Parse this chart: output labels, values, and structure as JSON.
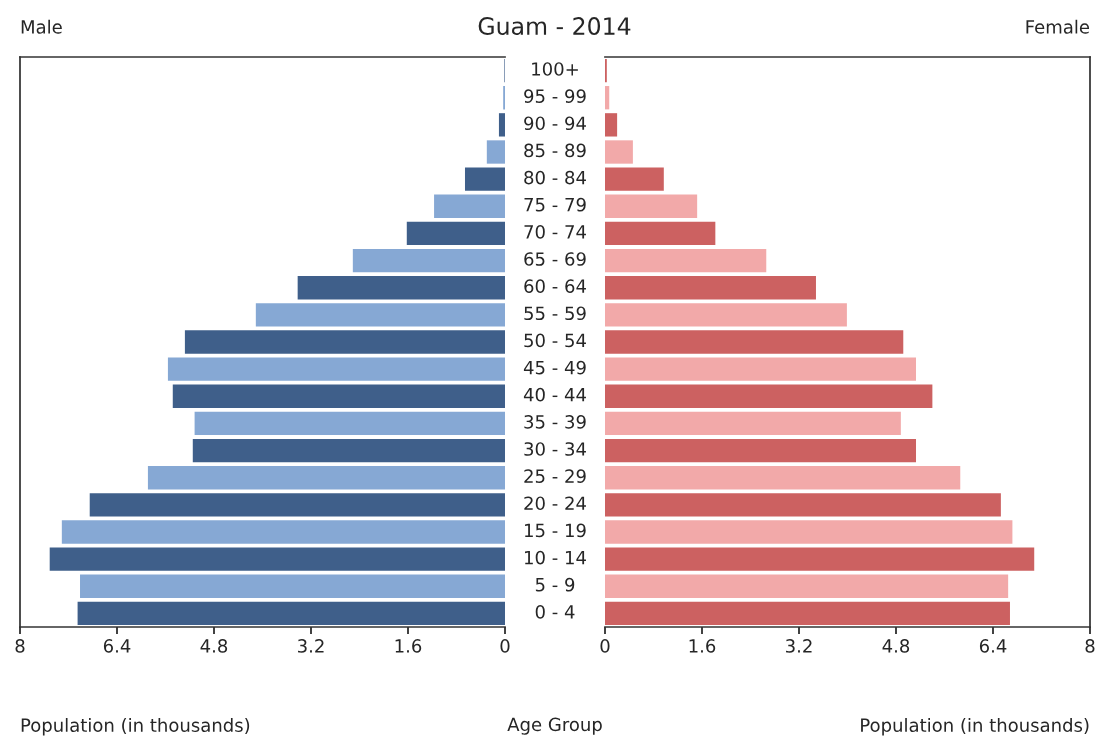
{
  "chart_data": [
    {
      "type": "bar",
      "orientation": "horizontal",
      "title": "Guam - 2014",
      "annotations": [
        "Male"
      ],
      "xlabel": "Population (in thousands)",
      "categories": [
        "100+",
        "95 - 99",
        "90 - 94",
        "85 - 89",
        "80 - 84",
        "75 - 79",
        "70 - 74",
        "65 - 69",
        "60 - 64",
        "55 - 59",
        "50 - 54",
        "45 - 49",
        "40 - 44",
        "35 - 39",
        "30 - 34",
        "25 - 29",
        "20 - 24",
        "15 - 19",
        "10 - 14",
        "5 - 9",
        "0 - 4"
      ],
      "values": [
        0.01,
        0.03,
        0.1,
        0.3,
        0.66,
        1.17,
        1.62,
        2.51,
        3.42,
        4.11,
        5.28,
        5.56,
        5.48,
        5.12,
        5.15,
        5.89,
        6.85,
        7.31,
        7.51,
        7.01,
        7.05
      ],
      "colors": [
        "#3f5f8a",
        "#86a8d4",
        "#3f5f8a",
        "#86a8d4",
        "#3f5f8a",
        "#86a8d4",
        "#3f5f8a",
        "#86a8d4",
        "#3f5f8a",
        "#86a8d4",
        "#3f5f8a",
        "#86a8d4",
        "#3f5f8a",
        "#86a8d4",
        "#3f5f8a",
        "#86a8d4",
        "#3f5f8a",
        "#86a8d4",
        "#3f5f8a",
        "#86a8d4",
        "#3f5f8a"
      ],
      "xlim": [
        8,
        0
      ],
      "xticks": [
        8,
        6.4,
        4.8,
        3.2,
        1.6,
        0
      ],
      "grid": false
    },
    {
      "type": "bar",
      "orientation": "horizontal",
      "annotations": [
        "Female"
      ],
      "xlabel": "Population (in thousands)",
      "ylabel": "Age Group",
      "categories": [
        null,
        null,
        null,
        null,
        null,
        null,
        null,
        null,
        null,
        null,
        null,
        null,
        null,
        null,
        null,
        null,
        null,
        null,
        null,
        null,
        null
      ],
      "values": [
        0.03,
        0.07,
        0.2,
        0.46,
        0.97,
        1.52,
        1.82,
        2.66,
        3.48,
        3.99,
        4.92,
        5.13,
        5.4,
        4.88,
        5.13,
        5.86,
        6.53,
        6.72,
        7.08,
        6.65,
        6.68
      ],
      "colors": [
        "#cc6161",
        "#f2a9a9",
        "#cc6161",
        "#f2a9a9",
        "#cc6161",
        "#f2a9a9",
        "#cc6161",
        "#f2a9a9",
        "#cc6161",
        "#f2a9a9",
        "#cc6161",
        "#f2a9a9",
        "#cc6161",
        "#f2a9a9",
        "#cc6161",
        "#f2a9a9",
        "#cc6161",
        "#f2a9a9",
        "#cc6161",
        "#f2a9a9",
        "#cc6161"
      ],
      "xlim": [
        0,
        8
      ],
      "xticks": [
        0,
        1.6,
        3.2,
        4.8,
        6.4,
        8
      ],
      "tick_labels": "x",
      "grid": false
    }
  ]
}
